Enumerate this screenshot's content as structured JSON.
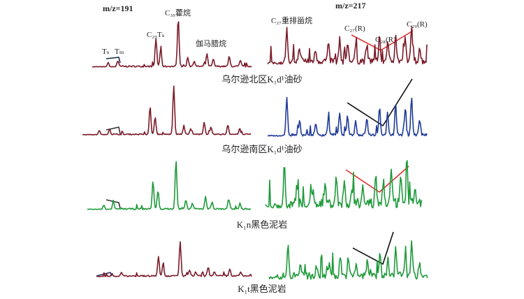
{
  "headers": {
    "left": "m/z=191",
    "right": "m/z=217"
  },
  "peak_labels": {
    "c30_hopane": "C₃₀藿烷",
    "c29ts": "C₂₉Tₛ",
    "ts": "Tₛ",
    "tm": "Tₘ",
    "gammacerane": "伽马腊烷",
    "c27_diasterane": "C₂₇重排甾烷",
    "c27r": "C₂₇(R)",
    "c28r": "C₂₈(R)",
    "c29r": "C₂₉(R)"
  },
  "captions": [
    "乌尔逊北区K₁d¹油砂",
    "乌尔逊南区K₁d¹油砂",
    "K₁n黑色泥岩",
    "K₁t黑色泥岩"
  ]
}
